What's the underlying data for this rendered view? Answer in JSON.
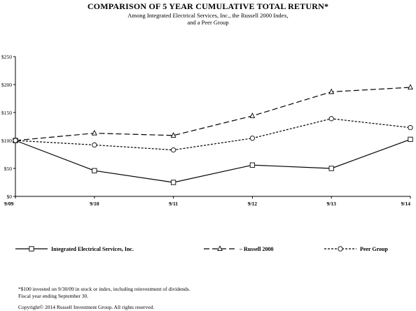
{
  "header": {
    "title": "COMPARISON OF 5 YEAR CUMULATIVE TOTAL RETURN*",
    "subtitle_line1": "Among Integrated Electrical Services, Inc., the Russell 2000 Index,",
    "subtitle_line2": "and a Peer Group"
  },
  "footnotes": {
    "line1": "*$100 invested on 9/30/09 in stock or index, including reinvestment of dividends.",
    "line2": "Fiscal year ending September 30.",
    "copyright": "Copyright© 2014 Russell Investment Group. All rights reserved."
  },
  "chart_data": {
    "type": "line",
    "categories": [
      "9/09",
      "9/10",
      "9/11",
      "9/12",
      "9/13",
      "9/14"
    ],
    "ylim": [
      0,
      250
    ],
    "yticks": [
      0,
      50,
      100,
      150,
      200,
      250
    ],
    "ytick_labels": [
      "$0",
      "$50",
      "$100",
      "$150",
      "$200",
      "$250"
    ],
    "grid": false,
    "legend_position": "bottom",
    "series": [
      {
        "name": "Integrated Electrical Services, Inc.",
        "marker": "square",
        "dash": "solid",
        "values": [
          100,
          46,
          25,
          56,
          50,
          102
        ]
      },
      {
        "name": "Russell 2000",
        "marker": "triangle",
        "dash": "long-dash",
        "values": [
          100,
          113,
          109,
          144,
          187,
          195
        ]
      },
      {
        "name": "Peer Group",
        "marker": "circle",
        "dash": "short-dash",
        "values": [
          100,
          92,
          83,
          104,
          139,
          123
        ]
      }
    ]
  }
}
